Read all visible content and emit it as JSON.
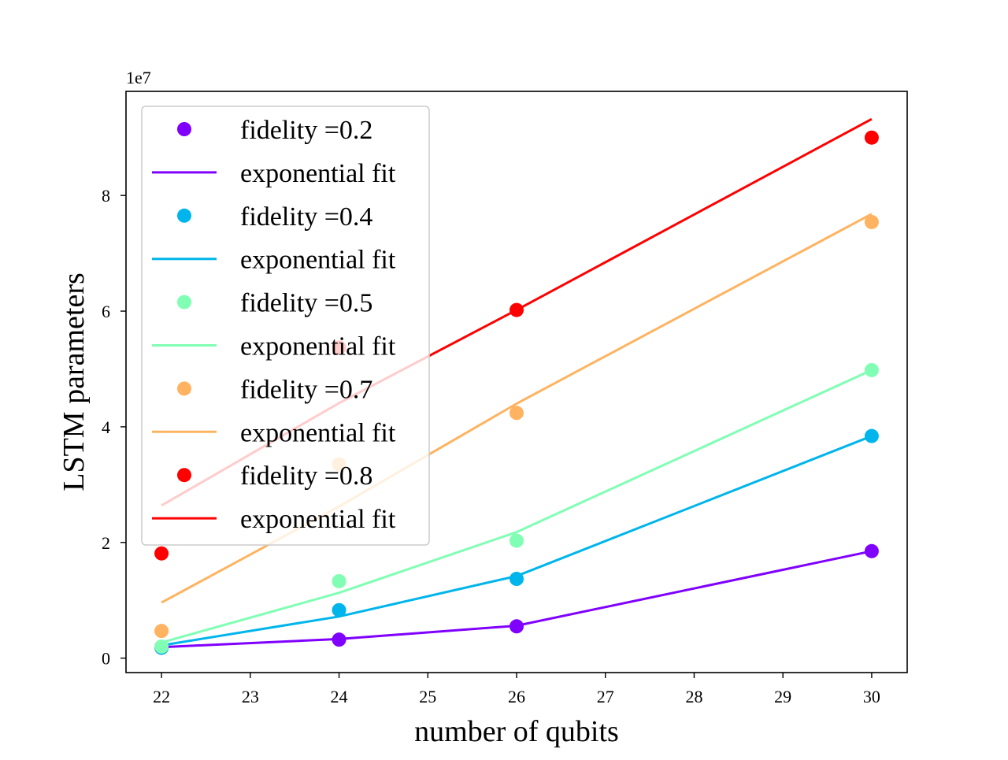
{
  "chart_data": {
    "type": "scatter",
    "title": "",
    "xlabel": "number of qubits",
    "ylabel": "LSTM parameters",
    "y_offset_label": "1e7",
    "y_multiplier": 10000000,
    "xlim": [
      21.6,
      30.4
    ],
    "ylim": [
      -0.25,
      9.8
    ],
    "x_ticks": [
      22,
      23,
      24,
      25,
      26,
      27,
      28,
      29,
      30
    ],
    "x_tick_labels": [
      "22",
      "23",
      "24",
      "25",
      "26",
      "27",
      "28",
      "29",
      "30"
    ],
    "y_ticks": [
      0,
      2,
      4,
      6,
      8
    ],
    "y_tick_labels": [
      "0",
      "2",
      "4",
      "6",
      "8"
    ],
    "grid": false,
    "legend_position": "upper-left",
    "x": [
      22,
      24,
      26,
      30
    ],
    "series": [
      {
        "name": "fidelity =0.2",
        "fit_name": "exponential fit",
        "color": "#8000ff",
        "points": [
          0.18,
          0.32,
          0.55,
          1.85
        ],
        "fit": [
          0.19,
          0.33,
          0.56,
          1.85
        ]
      },
      {
        "name": "fidelity =0.4",
        "fit_name": "exponential fit",
        "color": "#00b5eb",
        "points": [
          0.18,
          0.83,
          1.37,
          3.84
        ],
        "fit": [
          0.22,
          0.72,
          1.42,
          3.84
        ]
      },
      {
        "name": "fidelity =0.5",
        "fit_name": "exponential fit",
        "color": "#80ffb4",
        "points": [
          0.2,
          1.33,
          2.03,
          4.98
        ],
        "fit": [
          0.27,
          1.13,
          2.18,
          4.98
        ]
      },
      {
        "name": "fidelity =0.7",
        "fit_name": "exponential fit",
        "color": "#ffb360",
        "points": [
          0.47,
          3.35,
          4.24,
          7.54
        ],
        "fit": [
          0.96,
          2.62,
          4.4,
          7.68
        ]
      },
      {
        "name": "fidelity =0.8",
        "fit_name": "exponential fit",
        "color": "#ff0000",
        "points": [
          1.81,
          5.37,
          6.02,
          9.0
        ],
        "fit": [
          2.64,
          4.41,
          6.02,
          9.32
        ]
      }
    ]
  }
}
